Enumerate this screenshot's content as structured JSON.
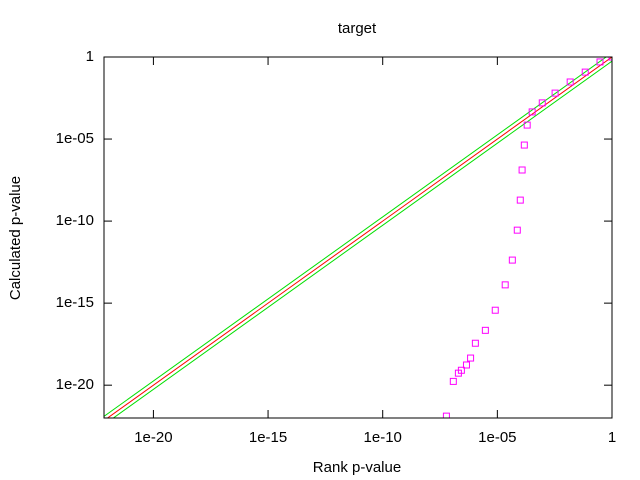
{
  "chart_data": {
    "type": "scatter",
    "title": "target",
    "x_label": "Rank p-value",
    "y_label": "Calculated p-value",
    "x_scale": "log",
    "y_scale": "log",
    "grid": false,
    "xlim": [
      7e-23,
      1
    ],
    "ylim": [
      1e-22,
      1
    ],
    "xticks": [
      {
        "value": 1e-20,
        "label": "1e-20"
      },
      {
        "value": 1e-15,
        "label": "1e-15"
      },
      {
        "value": 1e-10,
        "label": "1e-10"
      },
      {
        "value": 1e-05,
        "label": "1e-05"
      },
      1
    ],
    "yticks": [
      {
        "value": 1e-20,
        "label": "1e-20"
      },
      {
        "value": 1e-15,
        "label": "1e-15"
      },
      {
        "value": 1e-10,
        "label": "1e-10"
      },
      {
        "value": 1e-05,
        "label": "1e-05"
      },
      1
    ],
    "series": [
      {
        "style": "line",
        "color": "#00e000",
        "x": [
          7e-23,
          1
        ],
        "values": [
          1.26e-22,
          1.8
        ]
      },
      {
        "style": "line",
        "color": "#00e000",
        "x": [
          7e-23,
          1
        ],
        "values": [
          3.9e-23,
          0.56
        ]
      },
      {
        "style": "line",
        "color": "#ff0000",
        "x": [
          7e-23,
          1
        ],
        "values": [
          7e-23,
          1
        ]
      },
      {
        "style": "points",
        "color": "#ff00ff",
        "x": [
          1,
          0.3,
          0.068,
          0.015,
          0.0033,
          0.00091,
          0.00033,
          0.0002,
          0.00015,
          0.00012,
          0.0001,
          7.4e-05,
          4.5e-05,
          2.2e-05,
          8.1e-06,
          3e-06,
          1.1e-06,
          6.8e-07,
          4.5e-07,
          2.7e-07,
          2e-07,
          1.2e-07,
          6e-08
        ],
        "values": [
          1,
          0.5,
          0.12,
          0.03,
          0.0063,
          0.0016,
          0.00045,
          7.1e-05,
          4.3e-06,
          1.3e-07,
          1.9e-09,
          2.8e-11,
          4.2e-13,
          1.3e-14,
          3.7e-16,
          2.2e-17,
          3.6e-18,
          4.5e-19,
          1.7e-19,
          8.1e-20,
          5.4e-20,
          1.7e-20,
          1.3e-22
        ]
      }
    ]
  }
}
